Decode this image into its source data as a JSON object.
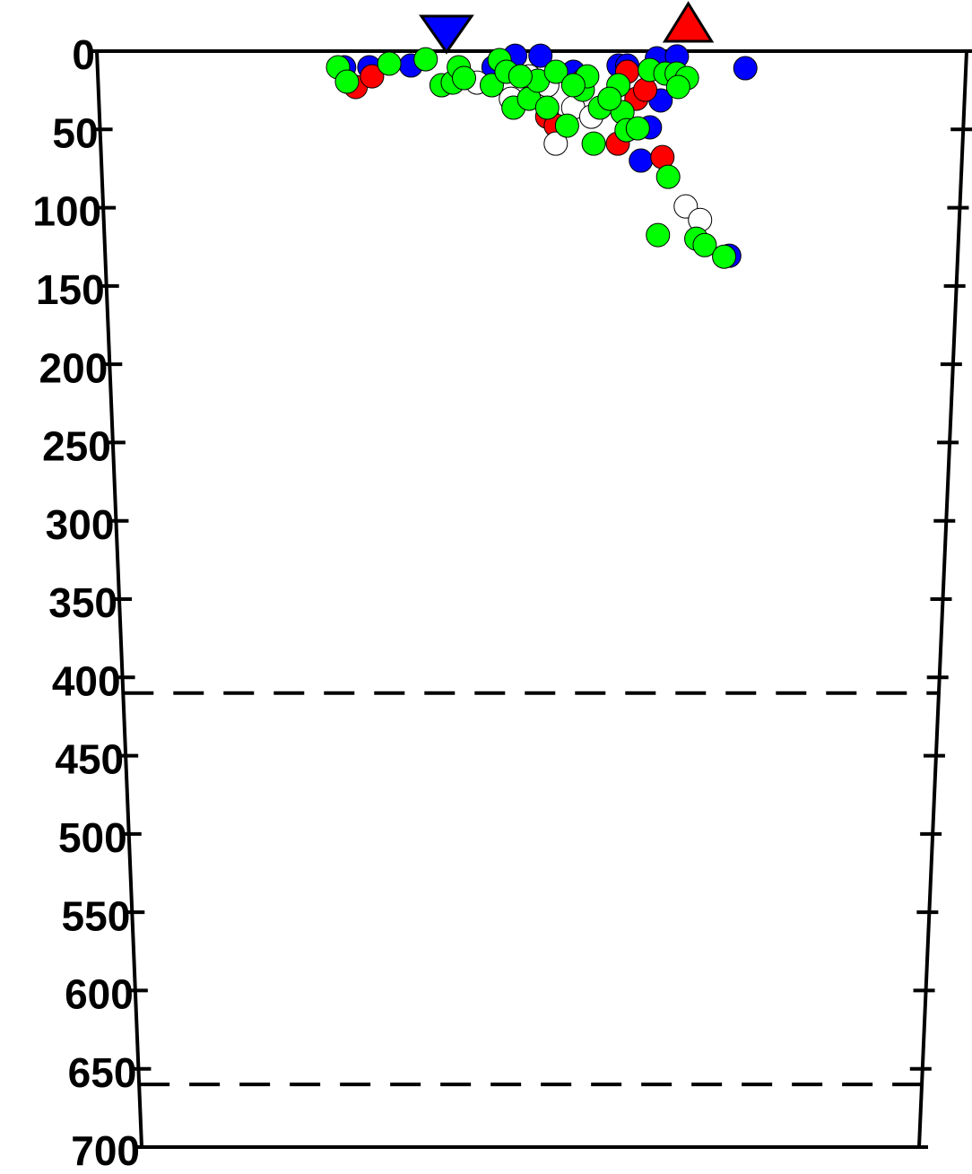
{
  "chart_data": {
    "type": "scatter",
    "ylim": [
      0,
      700
    ],
    "yticks": [
      0,
      50,
      100,
      150,
      200,
      250,
      300,
      350,
      400,
      450,
      500,
      550,
      600,
      650,
      700
    ],
    "y_inverted": true,
    "xlim": [
      0,
      100
    ],
    "reference_lines": [
      410,
      660
    ],
    "series": [
      {
        "color": "#0000ff",
        "x": [
          28.4,
          31.3,
          36.1,
          48.1,
          51.0,
          60.0,
          61.0,
          64.4,
          66.7,
          74.6,
          64.9,
          63.7,
          62.7,
          73.2,
          54.8,
          45.6
        ],
        "values": [
          10.3,
          10.3,
          9.2,
          2.9,
          2.9,
          9.2,
          9.2,
          4.6,
          3.4,
          10.9,
          31.5,
          48.7,
          69.9,
          130.7,
          13.2,
          10.3
        ]
      },
      {
        "color": "#ff0000",
        "x": [
          29.7,
          31.6,
          51.8,
          60.0,
          65.2,
          62.1,
          55.9,
          52.8,
          61.0,
          63.1
        ],
        "values": [
          22.9,
          16.1,
          41.9,
          59.1,
          67.7,
          30.4,
          18.9,
          47.6,
          13.2,
          24.7
        ]
      },
      {
        "color": "#ffffff",
        "x": [
          43.7,
          47.6,
          52.8,
          68.0,
          69.7,
          50.7,
          54.8,
          56.9,
          49.7,
          51.8
        ],
        "values": [
          20.1,
          30.4,
          59.1,
          99.2,
          107.8,
          24.7,
          36.1,
          41.9,
          16.1,
          21.8
        ]
      },
      {
        "color": "#00ff00",
        "x": [
          27.7,
          28.7,
          33.6,
          37.8,
          39.6,
          40.9,
          41.6,
          42.2,
          46.3,
          45.4,
          47.1,
          47.9,
          49.7,
          50.7,
          51.8,
          54.1,
          55.9,
          57.2,
          57.9,
          60.0,
          60.5,
          61.0,
          62.3,
          63.6,
          65.4,
          66.7,
          67.9,
          66.9,
          65.9,
          64.8,
          69.3,
          70.3,
          72.6,
          48.7,
          52.8,
          56.4,
          59.0,
          54.8
        ],
        "values": [
          10.3,
          19.5,
          8.0,
          5.2,
          21.8,
          20.1,
          10.3,
          17.2,
          5.7,
          21.8,
          13.2,
          36.1,
          30.4,
          18.9,
          36.1,
          47.6,
          24.7,
          59.1,
          36.1,
          21.8,
          39.0,
          50.5,
          49.3,
          12.0,
          14.3,
          14.3,
          17.2,
          22.9,
          80.3,
          117.5,
          119.8,
          123.9,
          131.3,
          16.1,
          13.2,
          16.1,
          30.4,
          21.8
        ]
      }
    ],
    "markers": [
      {
        "shape": "triangle-down",
        "color": "#0000ff",
        "x": 40.2
      },
      {
        "shape": "triangle-up",
        "color": "#ff0000",
        "x": 68.0
      }
    ]
  }
}
